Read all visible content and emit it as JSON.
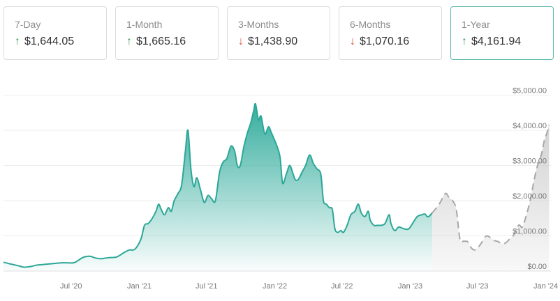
{
  "cards": [
    {
      "period": "7-Day",
      "value": "$1,644.05",
      "direction": "up",
      "selected": false
    },
    {
      "period": "1-Month",
      "value": "$1,665.16",
      "direction": "up",
      "selected": false
    },
    {
      "period": "3-Months",
      "value": "$1,438.90",
      "direction": "down",
      "selected": false
    },
    {
      "period": "6-Months",
      "value": "$1,070.16",
      "direction": "down",
      "selected": false
    },
    {
      "period": "1-Year",
      "value": "$4,161.94",
      "direction": "up",
      "selected": true
    }
  ],
  "colors": {
    "up_arrow": "#4f9d5d",
    "down_arrow": "#e0533e",
    "history_line": "#2ba797",
    "history_fill_top": "#35ad9e",
    "forecast_line": "#a8a8a8",
    "forecast_fill": "#d0d0d0",
    "selected_border": "#5fb7ac"
  },
  "chart_data": {
    "type": "area",
    "grid": true,
    "y_axis_position": "right",
    "ylim": [
      0,
      5000
    ],
    "y_ticks": [
      {
        "value": 0,
        "label": "$0.00"
      },
      {
        "value": 1000,
        "label": "$1,000.00"
      },
      {
        "value": 2000,
        "label": "$2,000.00"
      },
      {
        "value": 3000,
        "label": "$3,000.00"
      },
      {
        "value": 4000,
        "label": "$4,000.00"
      },
      {
        "value": 5000,
        "label": "$5,000.00"
      }
    ],
    "x_range": [
      "2020-01-01",
      "2024-01-15"
    ],
    "x_ticks": [
      {
        "date": "2020-07-01",
        "label": "Jul '20"
      },
      {
        "date": "2021-01-01",
        "label": "Jan '21"
      },
      {
        "date": "2021-07-01",
        "label": "Jul '21"
      },
      {
        "date": "2022-01-01",
        "label": "Jan '22"
      },
      {
        "date": "2022-07-01",
        "label": "Jul '22"
      },
      {
        "date": "2023-01-01",
        "label": "Jan '23"
      },
      {
        "date": "2023-07-01",
        "label": "Jul '23"
      },
      {
        "date": "2024-01-01",
        "label": "Jan '24"
      }
    ],
    "series": [
      {
        "style": "solid-area",
        "points": [
          [
            "2020-01-01",
            250
          ],
          [
            "2020-01-20",
            200
          ],
          [
            "2020-02-10",
            150
          ],
          [
            "2020-02-25",
            110
          ],
          [
            "2020-03-15",
            130
          ],
          [
            "2020-04-01",
            170
          ],
          [
            "2020-05-01",
            200
          ],
          [
            "2020-06-01",
            230
          ],
          [
            "2020-06-15",
            235
          ],
          [
            "2020-07-10",
            240
          ],
          [
            "2020-08-01",
            380
          ],
          [
            "2020-08-20",
            420
          ],
          [
            "2020-09-05",
            370
          ],
          [
            "2020-09-20",
            350
          ],
          [
            "2020-10-10",
            380
          ],
          [
            "2020-11-01",
            400
          ],
          [
            "2020-11-20",
            520
          ],
          [
            "2020-12-05",
            600
          ],
          [
            "2020-12-20",
            620
          ],
          [
            "2021-01-05",
            900
          ],
          [
            "2021-01-15",
            1300
          ],
          [
            "2021-01-25",
            1350
          ],
          [
            "2021-02-05",
            1500
          ],
          [
            "2021-02-15",
            1700
          ],
          [
            "2021-02-22",
            1900
          ],
          [
            "2021-03-01",
            1750
          ],
          [
            "2021-03-10",
            1600
          ],
          [
            "2021-03-20",
            1800
          ],
          [
            "2021-03-28",
            1700
          ],
          [
            "2021-04-05",
            2000
          ],
          [
            "2021-04-15",
            2200
          ],
          [
            "2021-04-25",
            2450
          ],
          [
            "2021-05-05",
            3400
          ],
          [
            "2021-05-12",
            4000
          ],
          [
            "2021-05-20",
            2900
          ],
          [
            "2021-05-28",
            2400
          ],
          [
            "2021-06-05",
            2650
          ],
          [
            "2021-06-15",
            2300
          ],
          [
            "2021-06-25",
            1950
          ],
          [
            "2021-07-05",
            2150
          ],
          [
            "2021-07-15",
            2050
          ],
          [
            "2021-07-25",
            2000
          ],
          [
            "2021-08-05",
            2800
          ],
          [
            "2021-08-15",
            3100
          ],
          [
            "2021-08-25",
            3200
          ],
          [
            "2021-09-05",
            3550
          ],
          [
            "2021-09-15",
            3400
          ],
          [
            "2021-09-22",
            3000
          ],
          [
            "2021-09-30",
            3000
          ],
          [
            "2021-10-10",
            3550
          ],
          [
            "2021-10-20",
            3950
          ],
          [
            "2021-10-28",
            4200
          ],
          [
            "2021-11-05",
            4550
          ],
          [
            "2021-11-10",
            4750
          ],
          [
            "2021-11-18",
            4300
          ],
          [
            "2021-11-25",
            4400
          ],
          [
            "2021-12-05",
            3900
          ],
          [
            "2021-12-15",
            4100
          ],
          [
            "2021-12-22",
            3950
          ],
          [
            "2022-01-05",
            3600
          ],
          [
            "2022-01-15",
            3250
          ],
          [
            "2022-01-22",
            2500
          ],
          [
            "2022-02-01",
            2750
          ],
          [
            "2022-02-10",
            3000
          ],
          [
            "2022-02-18",
            2800
          ],
          [
            "2022-02-25",
            2600
          ],
          [
            "2022-03-05",
            2600
          ],
          [
            "2022-03-15",
            2800
          ],
          [
            "2022-03-25",
            3000
          ],
          [
            "2022-04-05",
            3300
          ],
          [
            "2022-04-15",
            3050
          ],
          [
            "2022-04-25",
            2900
          ],
          [
            "2022-05-05",
            2750
          ],
          [
            "2022-05-12",
            2000
          ],
          [
            "2022-05-20",
            1900
          ],
          [
            "2022-05-28",
            1800
          ],
          [
            "2022-06-05",
            1750
          ],
          [
            "2022-06-12",
            1200
          ],
          [
            "2022-06-20",
            1100
          ],
          [
            "2022-06-28",
            1150
          ],
          [
            "2022-07-05",
            1100
          ],
          [
            "2022-07-15",
            1300
          ],
          [
            "2022-07-25",
            1600
          ],
          [
            "2022-08-05",
            1700
          ],
          [
            "2022-08-14",
            1900
          ],
          [
            "2022-08-22",
            1650
          ],
          [
            "2022-09-01",
            1550
          ],
          [
            "2022-09-10",
            1700
          ],
          [
            "2022-09-15",
            1450
          ],
          [
            "2022-09-25",
            1300
          ],
          [
            "2022-10-05",
            1300
          ],
          [
            "2022-10-15",
            1300
          ],
          [
            "2022-10-25",
            1350
          ],
          [
            "2022-11-05",
            1600
          ],
          [
            "2022-11-10",
            1350
          ],
          [
            "2022-11-20",
            1150
          ],
          [
            "2022-12-01",
            1250
          ],
          [
            "2022-12-15",
            1200
          ],
          [
            "2022-12-28",
            1200
          ],
          [
            "2023-01-10",
            1400
          ],
          [
            "2023-01-20",
            1550
          ],
          [
            "2023-02-01",
            1600
          ],
          [
            "2023-02-10",
            1620
          ],
          [
            "2023-02-15",
            1550
          ],
          [
            "2023-02-20",
            1550
          ],
          [
            "2023-03-01",
            1650
          ]
        ]
      },
      {
        "style": "dashed-forecast",
        "points": [
          [
            "2023-03-01",
            1650
          ],
          [
            "2023-03-20",
            1900
          ],
          [
            "2023-04-05",
            2200
          ],
          [
            "2023-04-15",
            2100
          ],
          [
            "2023-04-25",
            2000
          ],
          [
            "2023-05-05",
            1750
          ],
          [
            "2023-05-15",
            900
          ],
          [
            "2023-05-25",
            850
          ],
          [
            "2023-06-05",
            830
          ],
          [
            "2023-06-15",
            650
          ],
          [
            "2023-06-25",
            600
          ],
          [
            "2023-07-05",
            700
          ],
          [
            "2023-07-15",
            850
          ],
          [
            "2023-07-25",
            1000
          ],
          [
            "2023-08-05",
            950
          ],
          [
            "2023-08-15",
            870
          ],
          [
            "2023-08-25",
            840
          ],
          [
            "2023-09-05",
            780
          ],
          [
            "2023-09-15",
            800
          ],
          [
            "2023-09-25",
            900
          ],
          [
            "2023-10-05",
            1000
          ],
          [
            "2023-10-20",
            1300
          ],
          [
            "2023-10-30",
            1250
          ],
          [
            "2023-11-10",
            1600
          ],
          [
            "2023-11-20",
            2000
          ],
          [
            "2023-12-01",
            2600
          ],
          [
            "2023-12-10",
            3000
          ],
          [
            "2023-12-20",
            3300
          ],
          [
            "2023-12-28",
            3700
          ],
          [
            "2024-01-05",
            3950
          ],
          [
            "2024-01-10",
            4160
          ]
        ]
      }
    ]
  }
}
